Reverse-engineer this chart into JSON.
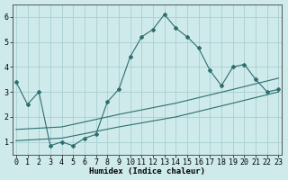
{
  "xlabel": "Humidex (Indice chaleur)",
  "bg_color": "#ceeaeb",
  "grid_color": "#aacfd1",
  "line_color": "#2d6e6e",
  "xlim": [
    -0.3,
    23.3
  ],
  "ylim": [
    0.5,
    6.5
  ],
  "y_ticks": [
    1,
    2,
    3,
    4,
    5,
    6
  ],
  "x_ticks": [
    0,
    1,
    2,
    3,
    4,
    5,
    6,
    7,
    8,
    9,
    10,
    11,
    12,
    13,
    14,
    15,
    16,
    17,
    18,
    19,
    20,
    21,
    22,
    23
  ],
  "s1_x": [
    0,
    1,
    2,
    3,
    4,
    5,
    6,
    7,
    8,
    9,
    10,
    11,
    12,
    13,
    14,
    15,
    16,
    17,
    18,
    19,
    20,
    21,
    22,
    23
  ],
  "s1_y": [
    3.4,
    2.5,
    3.0,
    0.85,
    1.0,
    0.85,
    1.15,
    1.3,
    2.6,
    3.1,
    4.4,
    5.2,
    5.5,
    6.1,
    5.55,
    5.2,
    4.75,
    3.85,
    3.25,
    4.0,
    4.1,
    3.5,
    3.0,
    3.1
  ],
  "s2_x": [
    0,
    4,
    9,
    14,
    19,
    23
  ],
  "s2_y": [
    1.05,
    1.15,
    1.6,
    2.0,
    2.55,
    3.0
  ],
  "s3_x": [
    0,
    4,
    9,
    14,
    19,
    23
  ],
  "s3_y": [
    1.5,
    1.6,
    2.1,
    2.55,
    3.1,
    3.55
  ],
  "xlabel_fontsize": 6.5,
  "tick_fontsize": 6.0
}
